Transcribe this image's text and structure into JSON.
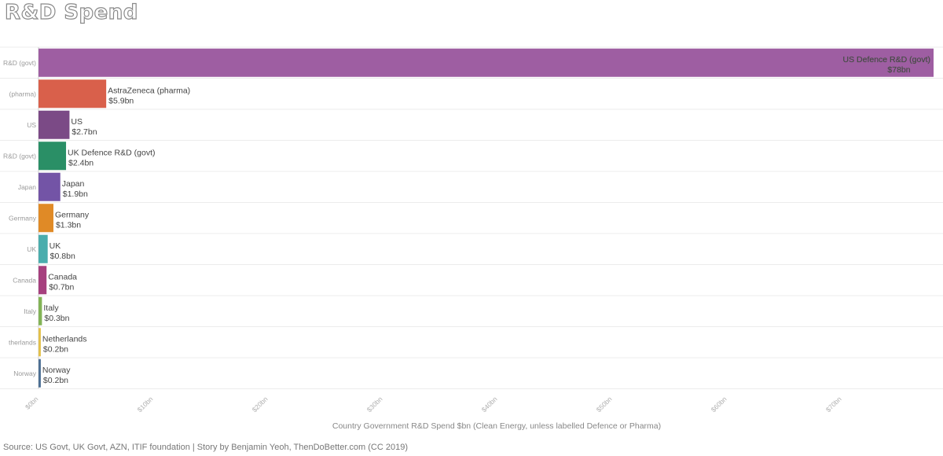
{
  "title": "R&D Spend",
  "source": "Source: US Govt, UK Govt, AZN, ITIF foundation | Story by Benjamin Yeoh, ThenDoBetter.com (CC 2019)",
  "chart_data": {
    "type": "bar",
    "orientation": "horizontal",
    "title": "R&D Spend",
    "xlabel": "Country Government R&D Spend $bn (Clean Energy, unless labelled Defence or Pharma)",
    "ylabel": "",
    "xlim": [
      0,
      78
    ],
    "grid": true,
    "legend": "none",
    "x_ticks": [
      "$0bn",
      "$10bn",
      "$20bn",
      "$30bn",
      "$40bn",
      "$50bn",
      "$60bn",
      "$70bn"
    ],
    "categories": [
      {
        "axis_label": "R&D (govt)",
        "name": "US Defence R&D (govt)",
        "value": 78,
        "value_label": "$78bn",
        "color": "#9e5ea2"
      },
      {
        "axis_label": "(pharma)",
        "name": "AstraZeneca (pharma)",
        "value": 5.9,
        "value_label": "$5.9bn",
        "color": "#d9604b"
      },
      {
        "axis_label": "US",
        "name": "US",
        "value": 2.7,
        "value_label": "$2.7bn",
        "color": "#7b4a86"
      },
      {
        "axis_label": "R&D (govt)",
        "name": "UK Defence R&D (govt)",
        "value": 2.4,
        "value_label": "$2.4bn",
        "color": "#2a8f66"
      },
      {
        "axis_label": "Japan",
        "name": "Japan",
        "value": 1.9,
        "value_label": "$1.9bn",
        "color": "#7354a6"
      },
      {
        "axis_label": "Germany",
        "name": "Germany",
        "value": 1.3,
        "value_label": "$1.3bn",
        "color": "#e08a26"
      },
      {
        "axis_label": "UK",
        "name": "UK",
        "value": 0.8,
        "value_label": "$0.8bn",
        "color": "#4aadad"
      },
      {
        "axis_label": "Canada",
        "name": "Canada",
        "value": 0.7,
        "value_label": "$0.7bn",
        "color": "#a6407e"
      },
      {
        "axis_label": "Italy",
        "name": "Italy",
        "value": 0.3,
        "value_label": "$0.3bn",
        "color": "#82b356"
      },
      {
        "axis_label": "therlands",
        "name": "Netherlands",
        "value": 0.2,
        "value_label": "$0.2bn",
        "color": "#e3c04a"
      },
      {
        "axis_label": "Norway",
        "name": "Norway",
        "value": 0.2,
        "value_label": "$0.2bn",
        "color": "#4d6f94"
      }
    ]
  }
}
